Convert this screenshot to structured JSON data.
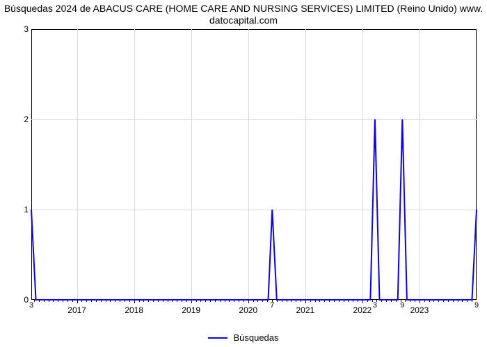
{
  "chart": {
    "type": "line",
    "title_line1": "Búsquedas 2024 de ABACUS CARE (HOME CARE AND NURSING SERVICES) LIMITED (Reino Unido) www.",
    "title_line2": "datocapital.com",
    "title_fontsize": 14,
    "title_color": "#000000",
    "background_color": "#ffffff",
    "plot_border_color": "#000000",
    "grid_color": "#d9d9d9",
    "grid_on": true,
    "line_color": "#0b00ff",
    "line_width": 2,
    "ylim": [
      0,
      3
    ],
    "ytick_step": 1,
    "yticks": [
      0,
      1,
      2,
      3
    ],
    "xlim": [
      2016.2,
      2024.0
    ],
    "years": [
      2017,
      2018,
      2019,
      2020,
      2021,
      2022,
      2023
    ],
    "minor_tick_div": 12,
    "x_start": 2016.2,
    "x_end": 2024.0,
    "series_label": "Búsquedas",
    "data_points": [
      {
        "x": 2016.2,
        "y": 1
      },
      {
        "x": 2016.28,
        "y": 0
      },
      {
        "x": 2020.35,
        "y": 0
      },
      {
        "x": 2020.42,
        "y": 1
      },
      {
        "x": 2020.5,
        "y": 0
      },
      {
        "x": 2022.14,
        "y": 0
      },
      {
        "x": 2022.22,
        "y": 2
      },
      {
        "x": 2022.3,
        "y": 0
      },
      {
        "x": 2022.62,
        "y": 0
      },
      {
        "x": 2022.7,
        "y": 2
      },
      {
        "x": 2022.78,
        "y": 0
      },
      {
        "x": 2023.92,
        "y": 0
      },
      {
        "x": 2024.0,
        "y": 1
      }
    ],
    "data_labels": [
      {
        "x": 2016.2,
        "text": "3"
      },
      {
        "x": 2020.42,
        "text": "7"
      },
      {
        "x": 2022.22,
        "text": "3"
      },
      {
        "x": 2022.7,
        "text": "9"
      },
      {
        "x": 2024.0,
        "text": "9"
      }
    ],
    "tick_fontsize": 12,
    "data_label_fontsize": 11,
    "legend_fontsize": 13,
    "legend_position": "bottom-center"
  }
}
